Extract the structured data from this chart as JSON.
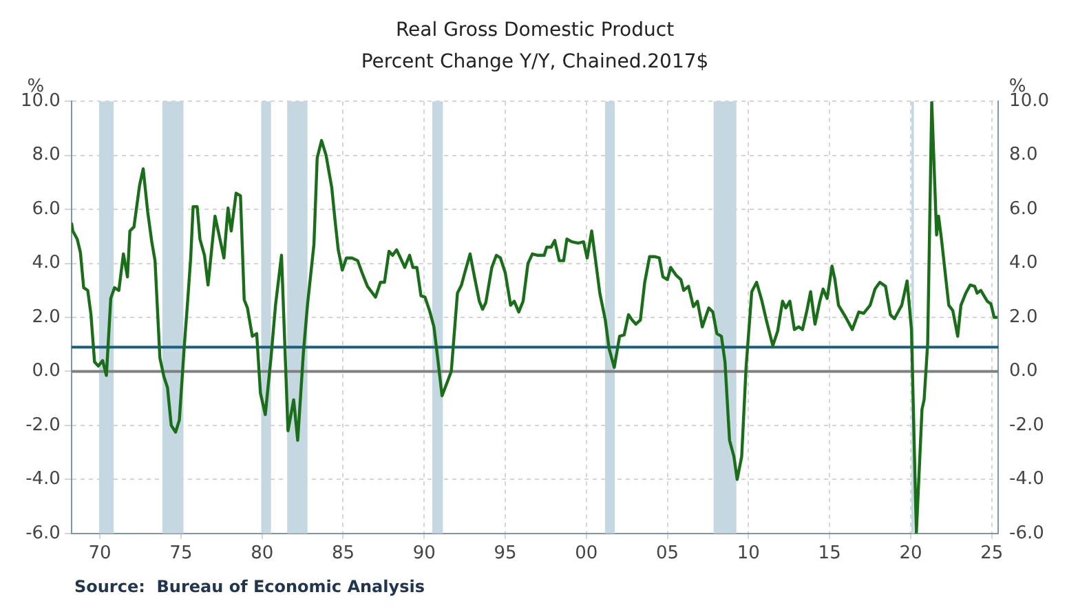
{
  "chart_data": {
    "type": "line",
    "title": "Real Gross Domestic Product",
    "subtitle": "Percent Change Y/Y, Chained.2017$",
    "ylabel": "%",
    "y2label": "%",
    "annotations": [
      "Source:  Bureau of Economic Analysis"
    ],
    "x": [
      1968.25,
      1968.33,
      1968.6,
      1968.8,
      1969.0,
      1969.25,
      1969.45,
      1969.67,
      1969.9,
      1970.17,
      1970.4,
      1970.67,
      1970.9,
      1971.17,
      1971.45,
      1971.7,
      1971.85,
      1972.1,
      1972.45,
      1972.67,
      1972.95,
      1973.2,
      1973.4,
      1973.7,
      1973.95,
      1974.17,
      1974.4,
      1974.67,
      1974.9,
      1975.2,
      1975.4,
      1975.6,
      1975.75,
      1976.0,
      1976.17,
      1976.45,
      1976.67,
      1977.1,
      1977.35,
      1977.65,
      1977.9,
      1978.1,
      1978.4,
      1978.67,
      1978.9,
      1979.1,
      1979.4,
      1979.67,
      1979.9,
      1980.2,
      1980.55,
      1980.83,
      1981.2,
      1981.6,
      1981.95,
      1982.2,
      1982.55,
      1982.8,
      1983.2,
      1983.4,
      1983.67,
      1983.95,
      1984.3,
      1984.5,
      1984.7,
      1984.95,
      1985.2,
      1985.55,
      1985.9,
      1986.17,
      1986.5,
      1987.0,
      1987.3,
      1987.55,
      1987.83,
      1988.05,
      1988.3,
      1988.5,
      1988.8,
      1989.1,
      1989.3,
      1989.55,
      1989.8,
      1990.05,
      1990.33,
      1990.6,
      1990.83,
      1991.1,
      1991.45,
      1991.67,
      1992.05,
      1992.3,
      1992.5,
      1992.83,
      1993.1,
      1993.4,
      1993.6,
      1993.8,
      1994.17,
      1994.45,
      1994.7,
      1995.0,
      1995.33,
      1995.55,
      1995.83,
      1996.1,
      1996.4,
      1996.67,
      1997.0,
      1997.4,
      1997.55,
      1997.83,
      1998.05,
      1998.33,
      1998.6,
      1998.8,
      1999.1,
      1999.5,
      1999.83,
      2000.05,
      2000.33,
      2000.55,
      2000.83,
      2001.17,
      2001.4,
      2001.72,
      2002.05,
      2002.33,
      2002.6,
      2002.83,
      2003.05,
      2003.33,
      2003.6,
      2003.9,
      2004.2,
      2004.5,
      2004.72,
      2005.0,
      2005.2,
      2005.55,
      2005.83,
      2006.0,
      2006.3,
      2006.6,
      2006.85,
      2007.15,
      2007.55,
      2007.8,
      2008.05,
      2008.33,
      2008.55,
      2008.83,
      2009.1,
      2009.3,
      2009.58,
      2009.85,
      2010.2,
      2010.5,
      2010.83,
      2011.1,
      2011.5,
      2011.8,
      2012.1,
      2012.3,
      2012.55,
      2012.83,
      2013.1,
      2013.33,
      2013.6,
      2013.83,
      2014.1,
      2014.4,
      2014.6,
      2014.85,
      2015.15,
      2015.33,
      2015.55,
      2016.0,
      2016.4,
      2016.8,
      2017.1,
      2017.5,
      2017.8,
      2018.1,
      2018.45,
      2018.75,
      2019.0,
      2019.45,
      2019.78,
      2020.05,
      2020.35,
      2020.7,
      2020.83,
      2021.05,
      2021.3,
      2021.6,
      2021.72,
      2021.9,
      2022.35,
      2022.6,
      2022.9,
      2023.1,
      2023.4,
      2023.67,
      2023.95,
      2024.1,
      2024.33,
      2024.72,
      2024.95,
      2025.15,
      2025.35
    ],
    "series": [
      {
        "color": "#1a6e1a",
        "values": [
          5.5,
          5.2,
          4.9,
          4.4,
          3.1,
          3.0,
          2.1,
          0.35,
          0.2,
          0.4,
          -0.15,
          2.7,
          3.1,
          3.0,
          4.35,
          3.5,
          5.2,
          5.35,
          6.9,
          7.5,
          5.9,
          4.8,
          4.1,
          0.5,
          -0.2,
          -0.6,
          -2.0,
          -2.25,
          -1.8,
          0.9,
          2.5,
          4.2,
          6.1,
          6.1,
          4.9,
          4.3,
          3.2,
          5.75,
          5.05,
          4.2,
          6.05,
          5.2,
          6.6,
          6.5,
          2.65,
          2.35,
          1.3,
          1.4,
          -0.8,
          -1.6,
          0.5,
          2.45,
          4.3,
          -2.2,
          -1.05,
          -2.55,
          0.7,
          2.45,
          4.7,
          7.9,
          8.55,
          8.0,
          6.8,
          5.6,
          4.5,
          3.75,
          4.2,
          4.2,
          4.1,
          3.65,
          3.15,
          2.75,
          3.3,
          3.3,
          4.45,
          4.3,
          4.5,
          4.25,
          3.85,
          4.3,
          3.85,
          3.85,
          2.8,
          2.75,
          2.25,
          1.65,
          0.5,
          -0.9,
          -0.35,
          0.0,
          2.9,
          3.2,
          3.65,
          4.35,
          3.5,
          2.6,
          2.3,
          2.55,
          3.85,
          4.3,
          4.2,
          3.65,
          2.45,
          2.6,
          2.2,
          2.6,
          4.0,
          4.35,
          4.3,
          4.3,
          4.6,
          4.6,
          4.85,
          4.1,
          4.1,
          4.9,
          4.8,
          4.75,
          4.8,
          4.2,
          5.2,
          4.2,
          2.9,
          1.9,
          0.85,
          0.15,
          1.3,
          1.35,
          2.1,
          1.9,
          1.75,
          1.9,
          3.3,
          4.25,
          4.25,
          4.2,
          3.5,
          3.4,
          3.85,
          3.55,
          3.4,
          3.0,
          3.15,
          2.4,
          2.6,
          1.65,
          2.35,
          2.2,
          1.4,
          1.3,
          0.35,
          -2.55,
          -3.15,
          -4.0,
          -3.15,
          0.15,
          2.95,
          3.3,
          2.6,
          1.9,
          0.95,
          1.5,
          2.6,
          2.35,
          2.6,
          1.55,
          1.65,
          1.55,
          2.25,
          2.95,
          1.75,
          2.6,
          3.05,
          2.7,
          3.9,
          3.4,
          2.45,
          2.0,
          1.55,
          2.2,
          2.15,
          2.45,
          3.05,
          3.3,
          3.15,
          2.1,
          1.95,
          2.45,
          3.35,
          1.55,
          -6.0,
          -1.4,
          -1.05,
          1.05,
          10.0,
          5.05,
          5.75,
          4.9,
          2.45,
          2.25,
          1.3,
          2.45,
          2.9,
          3.2,
          3.15,
          2.9,
          3.0,
          2.6,
          2.5,
          2.0,
          2.0
        ]
      }
    ],
    "xlim": [
      1968.25,
      2025.4
    ],
    "xticks": [
      {
        "value": 1970,
        "label": "70"
      },
      {
        "value": 1975,
        "label": "75"
      },
      {
        "value": 1980,
        "label": "80"
      },
      {
        "value": 1985,
        "label": "85"
      },
      {
        "value": 1990,
        "label": "90"
      },
      {
        "value": 1995,
        "label": "95"
      },
      {
        "value": 2000,
        "label": "00"
      },
      {
        "value": 2005,
        "label": "05"
      },
      {
        "value": 2010,
        "label": "10"
      },
      {
        "value": 2015,
        "label": "15"
      },
      {
        "value": 2020,
        "label": "20"
      },
      {
        "value": 2025,
        "label": "25"
      }
    ],
    "ylim": [
      -6,
      10
    ],
    "yticks": [
      {
        "value": -6,
        "label": "-6.0"
      },
      {
        "value": -4,
        "label": "-4.0"
      },
      {
        "value": -2,
        "label": "-2.0"
      },
      {
        "value": 0,
        "label": "0.0"
      },
      {
        "value": 2,
        "label": "2.0"
      },
      {
        "value": 4,
        "label": "4.0"
      },
      {
        "value": 6,
        "label": "6.0"
      },
      {
        "value": 8,
        "label": "8.0"
      },
      {
        "value": 10,
        "label": "10.0"
      }
    ],
    "y2lim": [
      -6,
      10
    ],
    "y2ticks": [
      {
        "value": -6,
        "label": "-6.0"
      },
      {
        "value": -4,
        "label": "-4.0"
      },
      {
        "value": -2,
        "label": "-2.0"
      },
      {
        "value": 0,
        "label": "0.0"
      },
      {
        "value": 2,
        "label": "2.0"
      },
      {
        "value": 4,
        "label": "4.0"
      },
      {
        "value": 6,
        "label": "6.0"
      },
      {
        "value": 8,
        "label": "8.0"
      },
      {
        "value": 10,
        "label": "10.0"
      }
    ],
    "ref_lines": [
      {
        "axis": "y",
        "value": 0,
        "color": "#808080"
      },
      {
        "axis": "y",
        "value": 0.9,
        "color": "#1b5f80"
      }
    ],
    "bands": [
      {
        "axis": "x",
        "from": 1969.95,
        "to": 1970.85,
        "color": "#c5d7e0"
      },
      {
        "axis": "x",
        "from": 1973.85,
        "to": 1975.15,
        "color": "#c5d7e0"
      },
      {
        "axis": "x",
        "from": 1979.95,
        "to": 1980.55,
        "color": "#c5d7e0"
      },
      {
        "axis": "x",
        "from": 1981.55,
        "to": 1982.8,
        "color": "#c5d7e0"
      },
      {
        "axis": "x",
        "from": 1990.5,
        "to": 1991.15,
        "color": "#c5d7e0"
      },
      {
        "axis": "x",
        "from": 2001.15,
        "to": 2001.75,
        "color": "#c5d7e0"
      },
      {
        "axis": "x",
        "from": 2007.85,
        "to": 2009.25,
        "color": "#c5d7e0"
      },
      {
        "axis": "x",
        "from": 2020.05,
        "to": 2020.2,
        "color": "#c5d7e0"
      }
    ],
    "grid": true,
    "marker": "none",
    "line_style": "solid"
  }
}
